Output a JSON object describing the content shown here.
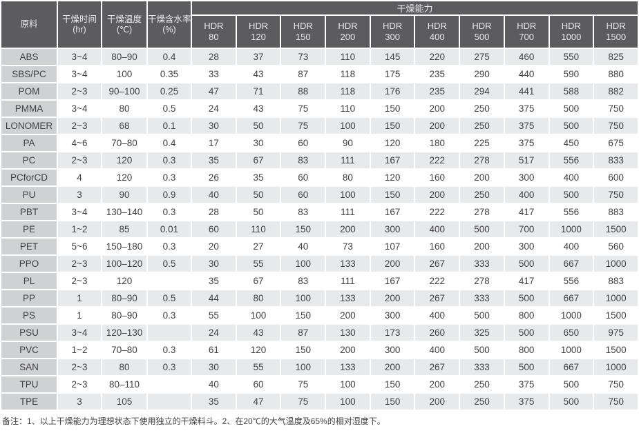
{
  "table": {
    "header": {
      "material": "原料",
      "time": [
        "干燥时间",
        "(hr)"
      ],
      "temp": [
        "干燥温度",
        "(℃)"
      ],
      "moisture": [
        "干燥含水率",
        "(%)"
      ],
      "capacity_group": "干燥能力",
      "capacity_cols": [
        [
          "HDR",
          "80"
        ],
        [
          "HDR",
          "120"
        ],
        [
          "HDR",
          "150"
        ],
        [
          "HDR",
          "200"
        ],
        [
          "HDR",
          "300"
        ],
        [
          "HDR",
          "400"
        ],
        [
          "HDR",
          "500"
        ],
        [
          "HDR",
          "700"
        ],
        [
          "HDR",
          "1000"
        ],
        [
          "HDR",
          "1500"
        ]
      ]
    },
    "rows": [
      {
        "material": "ABS",
        "time": "3~4",
        "temp": "80–90",
        "moisture": "0.4",
        "capacity": [
          "28",
          "37",
          "73",
          "110",
          "145",
          "220",
          "275",
          "460",
          "550",
          "825"
        ]
      },
      {
        "material": "SBS/PC",
        "time": "3~4",
        "temp": "100",
        "moisture": "0.35",
        "capacity": [
          "33",
          "43",
          "87",
          "118",
          "175",
          "235",
          "290",
          "440",
          "590",
          "880"
        ]
      },
      {
        "material": "POM",
        "time": "2~3",
        "temp": "90–100",
        "moisture": "0.25",
        "capacity": [
          "47",
          "71",
          "88",
          "118",
          "176",
          "235",
          "294",
          "441",
          "588",
          "882"
        ]
      },
      {
        "material": "PMMA",
        "time": "3~4",
        "temp": "80",
        "moisture": "0.5",
        "capacity": [
          "24",
          "43",
          "75",
          "110",
          "150",
          "200",
          "250",
          "375",
          "500",
          "750"
        ]
      },
      {
        "material": "LONOMER",
        "time": "2~3",
        "temp": "68",
        "moisture": "0.1",
        "capacity": [
          "30",
          "50",
          "75",
          "100",
          "150",
          "200",
          "250",
          "375",
          "500",
          "750"
        ]
      },
      {
        "material": "PA",
        "time": "4~6",
        "temp": "70–80",
        "moisture": "0.4",
        "capacity": [
          "17",
          "30",
          "60",
          "90",
          "120",
          "180",
          "225",
          "375",
          "450",
          "675"
        ]
      },
      {
        "material": "PC",
        "time": "2~3",
        "temp": "120",
        "moisture": "0.3",
        "capacity": [
          "35",
          "67",
          "83",
          "111",
          "167",
          "222",
          "278",
          "517",
          "556",
          "833"
        ]
      },
      {
        "material": "PCforCD",
        "time": "4",
        "temp": "120",
        "moisture": "0.3",
        "capacity": [
          "26",
          "35",
          "60",
          "80",
          "120",
          "160",
          "200",
          "300",
          "400",
          "600"
        ]
      },
      {
        "material": "PU",
        "time": "3",
        "temp": "90",
        "moisture": "0.9",
        "capacity": [
          "40",
          "50",
          "60",
          "100",
          "150",
          "200",
          "250",
          "400",
          "500",
          "750"
        ]
      },
      {
        "material": "PBT",
        "time": "3~4",
        "temp": "130–140",
        "moisture": "0.3",
        "capacity": [
          "28",
          "50",
          "83",
          "111",
          "167",
          "222",
          "278",
          "417",
          "556",
          "883"
        ]
      },
      {
        "material": "PE",
        "time": "1~2",
        "temp": "85",
        "moisture": "0.01",
        "capacity": [
          "60",
          "110",
          "150",
          "200",
          "300",
          "400",
          "500",
          "700",
          "1000",
          "1500"
        ]
      },
      {
        "material": "PET",
        "time": "5~6",
        "temp": "150–180",
        "moisture": "0.3",
        "capacity": [
          "20",
          "27",
          "40",
          "73",
          "107",
          "160",
          "200",
          "300",
          "400",
          "560"
        ]
      },
      {
        "material": "PPO",
        "time": "2~3",
        "temp": "100–120",
        "moisture": "0.5",
        "capacity": [
          "30",
          "55",
          "100",
          "133",
          "200",
          "267",
          "333",
          "500",
          "667",
          "1000"
        ]
      },
      {
        "material": "PL",
        "time": "2~3",
        "temp": "120",
        "moisture": "",
        "capacity": [
          "35",
          "67",
          "83",
          "111",
          "167",
          "222",
          "278",
          "417",
          "556",
          "883"
        ]
      },
      {
        "material": "PP",
        "time": "1",
        "temp": "80–90",
        "moisture": "0.5",
        "capacity": [
          "44",
          "80",
          "100",
          "133",
          "200",
          "267",
          "333",
          "500",
          "667",
          "1000"
        ]
      },
      {
        "material": "PS",
        "time": "1",
        "temp": "80–90",
        "moisture": "0.3",
        "capacity": [
          "55",
          "100",
          "150",
          "200",
          "300",
          "400",
          "500",
          "800",
          "1000",
          "1500"
        ]
      },
      {
        "material": "PSU",
        "time": "3~4",
        "temp": "120–130",
        "moisture": "",
        "capacity": [
          "24",
          "43",
          "87",
          "130",
          "173",
          "260",
          "325",
          "500",
          "650",
          "975"
        ]
      },
      {
        "material": "PVC",
        "time": "1~2",
        "temp": "70–80",
        "moisture": "0.3",
        "capacity": [
          "61",
          "120",
          "150",
          "200",
          "300",
          "400",
          "500",
          "800",
          "1000",
          "1500"
        ]
      },
      {
        "material": "SAN",
        "time": "2~3",
        "temp": "80",
        "moisture": "0.3",
        "capacity": [
          "30",
          "55",
          "100",
          "133",
          "200",
          "267",
          "333",
          "500",
          "667",
          "1000"
        ]
      },
      {
        "material": "TPU",
        "time": "2~3",
        "temp": "80–110",
        "moisture": "",
        "capacity": [
          "40",
          "60",
          "75",
          "100",
          "150",
          "200",
          "250",
          "375",
          "500",
          "750"
        ]
      },
      {
        "material": "TPE",
        "time": "3",
        "temp": "105",
        "moisture": "",
        "capacity": [
          "35",
          "47",
          "75",
          "100",
          "150",
          "200",
          "250",
          "375",
          "500",
          "750"
        ]
      }
    ]
  },
  "footer": {
    "note": "备注：1、以上干燥能力为理想状态下使用独立的干燥料斗。2、在20℃的大气温度及65%的相对湿度下。"
  },
  "colors": {
    "header_bg": "#5c5c5e",
    "header_text": "#e8e9ea",
    "material_col_bg": "#cfd1d3",
    "stripe_row_bg": "#e7e9ea",
    "plain_row_bg": "#ffffff",
    "body_text": "#414042"
  }
}
